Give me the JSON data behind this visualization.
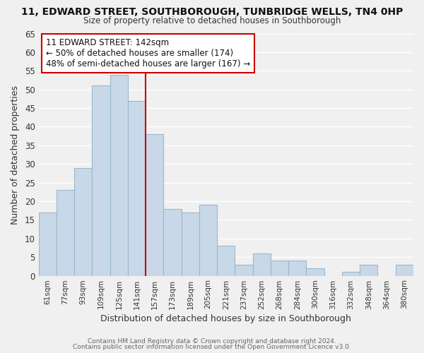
{
  "title1": "11, EDWARD STREET, SOUTHBOROUGH, TUNBRIDGE WELLS, TN4 0HP",
  "title2": "Size of property relative to detached houses in Southborough",
  "xlabel": "Distribution of detached houses by size in Southborough",
  "ylabel": "Number of detached properties",
  "categories": [
    "61sqm",
    "77sqm",
    "93sqm",
    "109sqm",
    "125sqm",
    "141sqm",
    "157sqm",
    "173sqm",
    "189sqm",
    "205sqm",
    "221sqm",
    "237sqm",
    "252sqm",
    "268sqm",
    "284sqm",
    "300sqm",
    "316sqm",
    "332sqm",
    "348sqm",
    "364sqm",
    "380sqm"
  ],
  "values": [
    17,
    23,
    29,
    51,
    54,
    47,
    38,
    18,
    17,
    19,
    8,
    3,
    6,
    4,
    4,
    2,
    0,
    1,
    3,
    0,
    3
  ],
  "bar_color": "#c8d8e8",
  "bar_edge_color": "#9ab8cc",
  "highlight_index": 5,
  "highlight_line_color": "#cc0000",
  "ylim": [
    0,
    65
  ],
  "yticks": [
    0,
    5,
    10,
    15,
    20,
    25,
    30,
    35,
    40,
    45,
    50,
    55,
    60,
    65
  ],
  "annotation_title": "11 EDWARD STREET: 142sqm",
  "annotation_line1": "← 50% of detached houses are smaller (174)",
  "annotation_line2": "48% of semi-detached houses are larger (167) →",
  "annotation_box_edge": "#cc0000",
  "footer1": "Contains HM Land Registry data © Crown copyright and database right 2024.",
  "footer2": "Contains public sector information licensed under the Open Government Licence v3.0.",
  "background_color": "#f0f0f0",
  "plot_bg_color": "#f0f0f0",
  "grid_color": "#ffffff"
}
